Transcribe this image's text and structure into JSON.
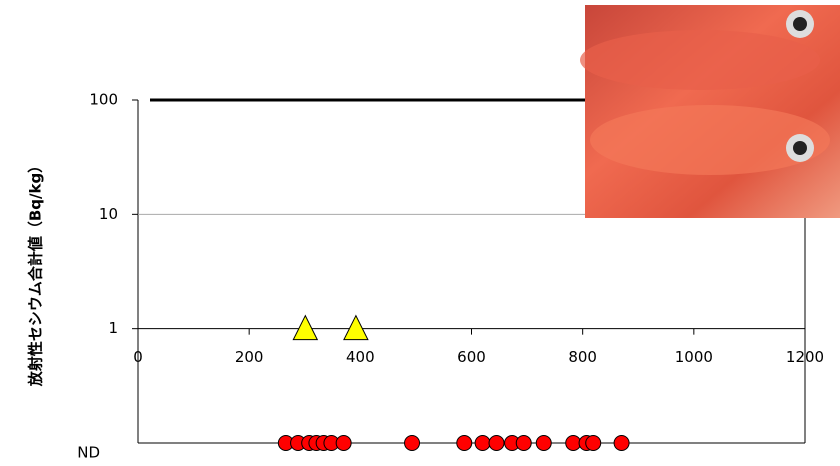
{
  "chart_data": {
    "type": "scatter",
    "ylabel": "放射性セシウム合計値（Bq/kg）",
    "log_y": true,
    "ylim": [
      0.1,
      100
    ],
    "yticks": [
      1,
      10,
      100
    ],
    "xlim": [
      0,
      1200
    ],
    "xticks": [
      0,
      200,
      400,
      600,
      800,
      1000,
      1200
    ],
    "nd_label": "ND",
    "series": [
      {
        "marker": "triangle",
        "color": "#ffff00",
        "x": [
          301,
          392
        ],
        "values": [
          1,
          1
        ]
      },
      {
        "marker": "circle",
        "color": "#ff0000",
        "x": [
          266,
          288,
          308,
          321,
          334,
          348,
          370,
          493,
          587,
          620,
          645,
          673,
          694,
          730,
          783,
          807,
          819,
          870
        ],
        "values": [
          "ND",
          "ND",
          "ND",
          "ND",
          "ND",
          "ND",
          "ND",
          "ND",
          "ND",
          "ND",
          "ND",
          "ND",
          "ND",
          "ND",
          "ND",
          "ND",
          "ND",
          "ND"
        ]
      }
    ]
  }
}
